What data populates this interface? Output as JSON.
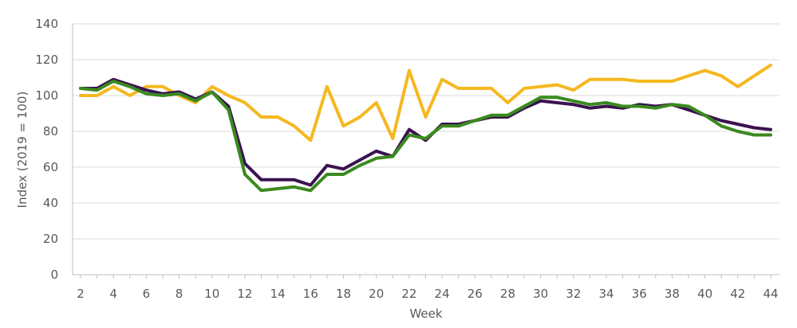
{
  "chart_data": {
    "type": "line",
    "title": "",
    "xlabel": "Week",
    "ylabel": "Index (2019 = 100)",
    "xlim": [
      2,
      44
    ],
    "ylim": [
      0,
      140
    ],
    "grid": "horizontal",
    "x_ticks": [
      2,
      4,
      6,
      8,
      10,
      12,
      14,
      16,
      18,
      20,
      22,
      24,
      26,
      28,
      30,
      32,
      34,
      36,
      38,
      40,
      42,
      44
    ],
    "y_ticks": [
      0,
      20,
      40,
      60,
      80,
      100,
      120,
      140
    ],
    "x": [
      2,
      3,
      4,
      5,
      6,
      7,
      8,
      9,
      10,
      11,
      12,
      13,
      14,
      15,
      16,
      17,
      18,
      19,
      20,
      21,
      22,
      23,
      24,
      25,
      26,
      27,
      28,
      29,
      30,
      31,
      32,
      33,
      34,
      35,
      36,
      37,
      38,
      39,
      40,
      41,
      42,
      43,
      44
    ],
    "series": [
      {
        "color": "#f5b821",
        "values": [
          100,
          100,
          105,
          100,
          105,
          105,
          100,
          96,
          105,
          100,
          96,
          88,
          88,
          83,
          75,
          105,
          83,
          88,
          96,
          76,
          114,
          88,
          109,
          104,
          104,
          104,
          96,
          104,
          105,
          106,
          103,
          109,
          109,
          109,
          108,
          108,
          108,
          111,
          114,
          111,
          105,
          111,
          117
        ]
      },
      {
        "color": "#3b1250",
        "values": [
          104,
          104,
          109,
          106,
          103,
          101,
          102,
          98,
          102,
          94,
          62,
          53,
          53,
          53,
          50,
          61,
          59,
          64,
          69,
          66,
          81,
          75,
          84,
          84,
          86,
          88,
          88,
          93,
          97,
          96,
          95,
          93,
          94,
          93,
          95,
          94,
          95,
          92,
          89,
          86,
          84,
          82,
          81
        ]
      },
      {
        "color": "#3a8a1f",
        "values": [
          104,
          103,
          108,
          105,
          101,
          100,
          101,
          97,
          102,
          92,
          56,
          47,
          48,
          49,
          47,
          56,
          56,
          61,
          65,
          66,
          78,
          76,
          83,
          83,
          86,
          89,
          89,
          94,
          99,
          99,
          97,
          95,
          96,
          94,
          94,
          93,
          95,
          94,
          89,
          83,
          80,
          78,
          78
        ]
      }
    ]
  }
}
